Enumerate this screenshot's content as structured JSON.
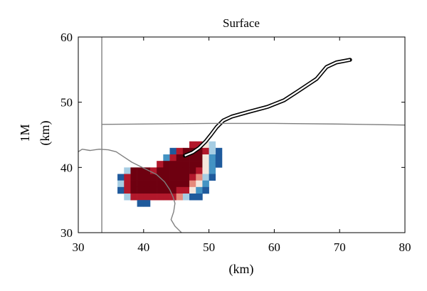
{
  "chart_data": {
    "type": "heatmap",
    "title": "Surface",
    "xlabel": "(km)",
    "ylabel_line1": "1M",
    "ylabel_line2": "(km)",
    "xlim": [
      30,
      80
    ],
    "ylim": [
      30,
      60
    ],
    "x_ticks": [
      30,
      40,
      50,
      60,
      70,
      80
    ],
    "y_ticks": [
      30,
      40,
      50,
      60
    ],
    "grid": false,
    "cell_size_km": [
      1,
      1
    ],
    "colors": {
      "dark_red": "#6e0010",
      "red": "#b2182b",
      "light_red": "#e58a7c",
      "pale": "#f5e6dc",
      "light_blue": "#a6cde3",
      "blue": "#4393c3",
      "dark_blue": "#1f5a9c",
      "gray": "#808080",
      "black": "#000000"
    },
    "cells": [
      {
        "x": 47,
        "y": 43,
        "c": "red"
      },
      {
        "x": 48,
        "y": 43,
        "c": "red"
      },
      {
        "x": 49,
        "y": 43,
        "c": "pale"
      },
      {
        "x": 50,
        "y": 43,
        "c": "light_blue"
      },
      {
        "x": 51,
        "y": 42,
        "c": "dark_blue"
      },
      {
        "x": 44,
        "y": 42,
        "c": "dark_blue"
      },
      {
        "x": 45,
        "y": 42,
        "c": "red"
      },
      {
        "x": 46,
        "y": 42,
        "c": "dark_red"
      },
      {
        "x": 47,
        "y": 42,
        "c": "dark_red"
      },
      {
        "x": 48,
        "y": 42,
        "c": "dark_red"
      },
      {
        "x": 49,
        "y": 42,
        "c": "red"
      },
      {
        "x": 50,
        "y": 42,
        "c": "light_blue"
      },
      {
        "x": 43,
        "y": 41,
        "c": "blue"
      },
      {
        "x": 44,
        "y": 41,
        "c": "red"
      },
      {
        "x": 45,
        "y": 41,
        "c": "dark_red"
      },
      {
        "x": 46,
        "y": 41,
        "c": "dark_red"
      },
      {
        "x": 47,
        "y": 41,
        "c": "dark_red"
      },
      {
        "x": 48,
        "y": 41,
        "c": "dark_red"
      },
      {
        "x": 49,
        "y": 41,
        "c": "pale"
      },
      {
        "x": 50,
        "y": 41,
        "c": "blue"
      },
      {
        "x": 51,
        "y": 41,
        "c": "dark_blue"
      },
      {
        "x": 42,
        "y": 40,
        "c": "red"
      },
      {
        "x": 43,
        "y": 40,
        "c": "dark_red"
      },
      {
        "x": 44,
        "y": 40,
        "c": "dark_red"
      },
      {
        "x": 45,
        "y": 40,
        "c": "dark_red"
      },
      {
        "x": 46,
        "y": 40,
        "c": "dark_red"
      },
      {
        "x": 47,
        "y": 40,
        "c": "dark_red"
      },
      {
        "x": 48,
        "y": 40,
        "c": "dark_red"
      },
      {
        "x": 49,
        "y": 40,
        "c": "pale"
      },
      {
        "x": 50,
        "y": 40,
        "c": "blue"
      },
      {
        "x": 51,
        "y": 40,
        "c": "dark_blue"
      },
      {
        "x": 37,
        "y": 39,
        "c": "light_blue"
      },
      {
        "x": 38,
        "y": 39,
        "c": "dark_red"
      },
      {
        "x": 39,
        "y": 39,
        "c": "dark_red"
      },
      {
        "x": 40,
        "y": 39,
        "c": "dark_red"
      },
      {
        "x": 41,
        "y": 39,
        "c": "red"
      },
      {
        "x": 42,
        "y": 39,
        "c": "dark_red"
      },
      {
        "x": 43,
        "y": 39,
        "c": "dark_red"
      },
      {
        "x": 44,
        "y": 39,
        "c": "dark_red"
      },
      {
        "x": 45,
        "y": 39,
        "c": "dark_red"
      },
      {
        "x": 46,
        "y": 39,
        "c": "dark_red"
      },
      {
        "x": 47,
        "y": 39,
        "c": "dark_red"
      },
      {
        "x": 48,
        "y": 39,
        "c": "red"
      },
      {
        "x": 49,
        "y": 39,
        "c": "pale"
      },
      {
        "x": 50,
        "y": 39,
        "c": "blue"
      },
      {
        "x": 36,
        "y": 38,
        "c": "dark_blue"
      },
      {
        "x": 37,
        "y": 38,
        "c": "red"
      },
      {
        "x": 38,
        "y": 38,
        "c": "dark_red"
      },
      {
        "x": 39,
        "y": 38,
        "c": "dark_red"
      },
      {
        "x": 40,
        "y": 38,
        "c": "dark_red"
      },
      {
        "x": 41,
        "y": 38,
        "c": "dark_red"
      },
      {
        "x": 42,
        "y": 38,
        "c": "dark_red"
      },
      {
        "x": 43,
        "y": 38,
        "c": "dark_red"
      },
      {
        "x": 44,
        "y": 38,
        "c": "dark_red"
      },
      {
        "x": 45,
        "y": 38,
        "c": "dark_red"
      },
      {
        "x": 46,
        "y": 38,
        "c": "dark_red"
      },
      {
        "x": 47,
        "y": 38,
        "c": "red"
      },
      {
        "x": 48,
        "y": 38,
        "c": "light_red"
      },
      {
        "x": 49,
        "y": 38,
        "c": "light_blue"
      },
      {
        "x": 50,
        "y": 38,
        "c": "dark_blue"
      },
      {
        "x": 36,
        "y": 37,
        "c": "light_blue"
      },
      {
        "x": 37,
        "y": 37,
        "c": "red"
      },
      {
        "x": 38,
        "y": 37,
        "c": "dark_red"
      },
      {
        "x": 39,
        "y": 37,
        "c": "dark_red"
      },
      {
        "x": 40,
        "y": 37,
        "c": "dark_red"
      },
      {
        "x": 41,
        "y": 37,
        "c": "dark_red"
      },
      {
        "x": 42,
        "y": 37,
        "c": "dark_red"
      },
      {
        "x": 43,
        "y": 37,
        "c": "dark_red"
      },
      {
        "x": 44,
        "y": 37,
        "c": "dark_red"
      },
      {
        "x": 45,
        "y": 37,
        "c": "dark_red"
      },
      {
        "x": 46,
        "y": 37,
        "c": "dark_red"
      },
      {
        "x": 47,
        "y": 37,
        "c": "light_red"
      },
      {
        "x": 48,
        "y": 37,
        "c": "pale"
      },
      {
        "x": 49,
        "y": 37,
        "c": "blue"
      },
      {
        "x": 36,
        "y": 36,
        "c": "dark_blue"
      },
      {
        "x": 37,
        "y": 36,
        "c": "red"
      },
      {
        "x": 38,
        "y": 36,
        "c": "dark_red"
      },
      {
        "x": 39,
        "y": 36,
        "c": "dark_red"
      },
      {
        "x": 40,
        "y": 36,
        "c": "dark_red"
      },
      {
        "x": 41,
        "y": 36,
        "c": "dark_red"
      },
      {
        "x": 42,
        "y": 36,
        "c": "dark_red"
      },
      {
        "x": 43,
        "y": 36,
        "c": "dark_red"
      },
      {
        "x": 44,
        "y": 36,
        "c": "dark_red"
      },
      {
        "x": 45,
        "y": 36,
        "c": "red"
      },
      {
        "x": 46,
        "y": 36,
        "c": "red"
      },
      {
        "x": 47,
        "y": 36,
        "c": "pale"
      },
      {
        "x": 48,
        "y": 36,
        "c": "blue"
      },
      {
        "x": 49,
        "y": 36,
        "c": "dark_blue"
      },
      {
        "x": 37,
        "y": 35,
        "c": "light_blue"
      },
      {
        "x": 38,
        "y": 35,
        "c": "red"
      },
      {
        "x": 39,
        "y": 35,
        "c": "red"
      },
      {
        "x": 40,
        "y": 35,
        "c": "red"
      },
      {
        "x": 41,
        "y": 35,
        "c": "red"
      },
      {
        "x": 42,
        "y": 35,
        "c": "red"
      },
      {
        "x": 43,
        "y": 35,
        "c": "red"
      },
      {
        "x": 44,
        "y": 35,
        "c": "red"
      },
      {
        "x": 45,
        "y": 35,
        "c": "light_red"
      },
      {
        "x": 46,
        "y": 35,
        "c": "light_blue"
      },
      {
        "x": 47,
        "y": 35,
        "c": "dark_blue"
      },
      {
        "x": 48,
        "y": 35,
        "c": "dark_blue"
      },
      {
        "x": 39,
        "y": 34,
        "c": "dark_blue"
      },
      {
        "x": 40,
        "y": 34,
        "c": "dark_blue"
      }
    ],
    "series": [
      {
        "style": "double-black",
        "points": [
          [
            46.3,
            41.8
          ],
          [
            47.5,
            42.3
          ],
          [
            48.5,
            43
          ],
          [
            49.5,
            44
          ],
          [
            50.3,
            45
          ],
          [
            51.2,
            46.2
          ],
          [
            52.2,
            47.2
          ],
          [
            53.5,
            47.8
          ],
          [
            56,
            48.5
          ],
          [
            59,
            49.3
          ],
          [
            61.5,
            50.3
          ],
          [
            63.5,
            51.6
          ],
          [
            65.3,
            52.8
          ],
          [
            66.5,
            53.6
          ],
          [
            68,
            55.4
          ],
          [
            69.5,
            56.1
          ],
          [
            71.6,
            56.5
          ]
        ]
      },
      {
        "style": "gray",
        "points": [
          [
            33.6,
            60
          ],
          [
            33.6,
            30
          ]
        ]
      },
      {
        "style": "gray",
        "points": [
          [
            33.6,
            46.6
          ],
          [
            50,
            46.75
          ],
          [
            60,
            46.75
          ],
          [
            70,
            46.65
          ],
          [
            80,
            46.5
          ]
        ]
      },
      {
        "style": "gray",
        "points": [
          [
            30,
            42.4
          ],
          [
            30.6,
            42.8
          ],
          [
            31.8,
            42.6
          ],
          [
            33.2,
            42.8
          ],
          [
            34.6,
            42.7
          ],
          [
            35.8,
            42.4
          ],
          [
            37,
            41.6
          ],
          [
            38.2,
            40.8
          ],
          [
            39.4,
            40.2
          ],
          [
            40.8,
            39.5
          ],
          [
            42,
            38.9
          ],
          [
            43.2,
            37.8
          ],
          [
            44,
            36.6
          ],
          [
            44.5,
            35.5
          ],
          [
            44.8,
            34.5
          ],
          [
            44.6,
            33.2
          ],
          [
            44.2,
            32.0
          ],
          [
            44.8,
            31.0
          ],
          [
            45.8,
            30.0
          ]
        ]
      }
    ]
  }
}
